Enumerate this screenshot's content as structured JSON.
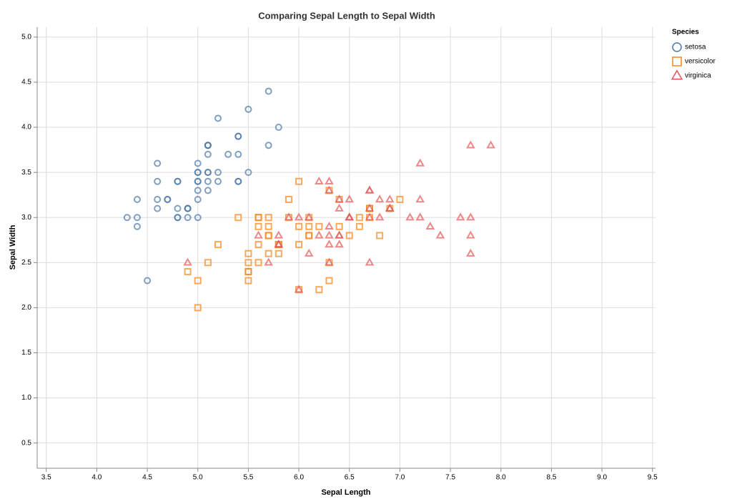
{
  "chart_data": {
    "type": "scatter",
    "title": "Comparing Sepal Length to Sepal Width",
    "x_label": "Sepal Length",
    "y_label": "Sepal Width",
    "legend_title": "Species",
    "legend": "top-right",
    "grid": true,
    "xlim": [
      3.41,
      9.53
    ],
    "ylim": [
      0.22,
      5.11
    ],
    "xticks": [
      3.5,
      {
        "value": 4,
        "label": "4.0"
      },
      4.5,
      {
        "value": 5,
        "label": "5.0"
      },
      5.5,
      {
        "value": 6,
        "label": "6.0"
      },
      6.5,
      {
        "value": 7,
        "label": "7.0"
      },
      7.5,
      {
        "value": 8,
        "label": "8.0"
      },
      8.5,
      {
        "value": 9,
        "label": "9.0"
      },
      9.5
    ],
    "yticks": [
      0.5,
      {
        "value": 1,
        "label": "1.0"
      },
      1.5,
      {
        "value": 2,
        "label": "2.0"
      },
      2.5,
      {
        "value": 3,
        "label": "3.0"
      },
      3.5,
      {
        "value": 4,
        "label": "4.0"
      },
      4.5,
      {
        "value": 5,
        "label": "5.0"
      }
    ],
    "series": [
      {
        "name": "setosa",
        "color": "#4c78a8",
        "shape": "circle",
        "x": [
          5.1,
          4.9,
          4.7,
          4.6,
          5.0,
          5.4,
          4.6,
          5.0,
          4.4,
          4.9,
          5.4,
          4.8,
          4.8,
          4.3,
          5.8,
          5.7,
          5.4,
          5.1,
          5.7,
          5.1,
          5.4,
          5.1,
          4.6,
          5.1,
          4.8,
          5.0,
          5.0,
          5.2,
          5.2,
          4.7,
          4.8,
          5.4,
          5.2,
          5.5,
          4.9,
          5.0,
          5.5,
          4.9,
          4.4,
          5.1,
          5.0,
          4.5,
          4.4,
          5.0,
          5.1,
          4.8,
          5.1,
          4.6,
          5.3,
          5.0
        ],
        "values": [
          3.5,
          3.0,
          3.2,
          3.1,
          3.6,
          3.9,
          3.4,
          3.4,
          2.9,
          3.1,
          3.7,
          3.4,
          3.0,
          3.0,
          4.0,
          4.4,
          3.9,
          3.5,
          3.8,
          3.8,
          3.4,
          3.7,
          3.6,
          3.3,
          3.4,
          3.0,
          3.4,
          3.5,
          3.4,
          3.2,
          3.1,
          3.4,
          4.1,
          4.2,
          3.1,
          3.2,
          3.5,
          3.1,
          3.0,
          3.4,
          3.5,
          2.3,
          3.2,
          3.5,
          3.8,
          3.0,
          3.8,
          3.2,
          3.7,
          3.3
        ]
      },
      {
        "name": "versicolor",
        "color": "#f58518",
        "shape": "square",
        "x": [
          7.0,
          6.4,
          6.9,
          5.5,
          6.5,
          5.7,
          6.3,
          4.9,
          6.6,
          5.2,
          5.0,
          5.9,
          6.0,
          6.1,
          5.6,
          6.7,
          5.6,
          5.8,
          6.2,
          5.6,
          5.9,
          6.1,
          6.3,
          6.1,
          6.4,
          6.6,
          6.8,
          6.7,
          6.0,
          5.7,
          5.5,
          5.5,
          5.8,
          6.0,
          5.4,
          6.0,
          6.7,
          6.3,
          5.6,
          5.5,
          5.5,
          6.1,
          5.8,
          5.0,
          5.6,
          5.7,
          5.7,
          6.2,
          5.1,
          5.7
        ],
        "values": [
          3.2,
          3.2,
          3.1,
          2.3,
          2.8,
          2.8,
          3.3,
          2.4,
          2.9,
          2.7,
          2.0,
          3.0,
          2.2,
          2.9,
          2.9,
          3.1,
          3.0,
          2.7,
          2.2,
          2.5,
          3.2,
          2.8,
          2.5,
          2.8,
          2.9,
          3.0,
          2.8,
          3.0,
          2.9,
          2.6,
          2.4,
          2.4,
          2.7,
          2.7,
          3.0,
          3.4,
          3.1,
          2.3,
          3.0,
          2.5,
          2.6,
          3.0,
          2.6,
          2.3,
          2.7,
          3.0,
          2.9,
          2.9,
          2.5,
          2.8
        ]
      },
      {
        "name": "virginica",
        "color": "#e45756",
        "shape": "triangle",
        "x": [
          6.3,
          5.8,
          7.1,
          6.3,
          6.5,
          7.6,
          4.9,
          7.3,
          6.7,
          7.2,
          6.5,
          6.4,
          6.8,
          5.7,
          5.8,
          6.4,
          6.5,
          7.7,
          7.7,
          6.0,
          6.9,
          5.6,
          7.7,
          6.3,
          6.7,
          7.2,
          6.2,
          6.1,
          6.4,
          7.2,
          7.4,
          7.9,
          6.4,
          6.3,
          6.1,
          7.7,
          6.3,
          6.4,
          6.0,
          6.9,
          6.7,
          6.9,
          5.8,
          6.8,
          6.7,
          6.7,
          6.3,
          6.5,
          6.2,
          5.9
        ],
        "values": [
          3.3,
          2.7,
          3.0,
          2.9,
          3.0,
          3.0,
          2.5,
          2.9,
          2.5,
          3.6,
          3.2,
          2.7,
          3.0,
          2.5,
          2.8,
          3.2,
          3.0,
          3.8,
          2.6,
          2.2,
          3.2,
          2.8,
          2.8,
          2.7,
          3.3,
          3.2,
          2.8,
          3.0,
          2.8,
          3.0,
          2.8,
          3.8,
          2.8,
          2.8,
          2.6,
          3.0,
          3.4,
          3.1,
          3.0,
          3.1,
          3.1,
          3.1,
          2.7,
          3.2,
          3.3,
          3.0,
          2.5,
          3.0,
          3.4,
          3.0
        ]
      }
    ]
  }
}
